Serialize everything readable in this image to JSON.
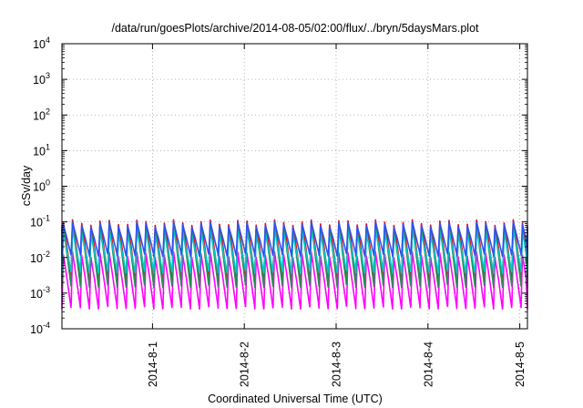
{
  "chart_data": {
    "type": "line",
    "title": "/data/run/goesPlots/archive/2014-08-05/02:00/flux/../bryn/5daysMars.plot",
    "xlabel": "Coordinated Universal Time (UTC)",
    "ylabel": "cSv/day",
    "y_scale": "log",
    "ylim": [
      0.0001,
      10000
    ],
    "y_ticks": [
      {
        "base": "10",
        "exp": "-4",
        "value": 0.0001
      },
      {
        "base": "10",
        "exp": "-3",
        "value": 0.001
      },
      {
        "base": "10",
        "exp": "-2",
        "value": 0.01
      },
      {
        "base": "10",
        "exp": "-1",
        "value": 0.1
      },
      {
        "base": "10",
        "exp": "0",
        "value": 1
      },
      {
        "base": "10",
        "exp": "1",
        "value": 10
      },
      {
        "base": "10",
        "exp": "2",
        "value": 100
      },
      {
        "base": "10",
        "exp": "3",
        "value": 1000
      },
      {
        "base": "10",
        "exp": "4",
        "value": 10000
      }
    ],
    "xlim": [
      "2014-07-31T00:20",
      "2014-08-05T02:00"
    ],
    "x_ticks": [
      {
        "label": "2014-8-1",
        "value": "2014-08-01"
      },
      {
        "label": "2014-8-2",
        "value": "2014-08-02"
      },
      {
        "label": "2014-8-3",
        "value": "2014-08-03"
      },
      {
        "label": "2014-8-4",
        "value": "2014-08-04"
      },
      {
        "label": "2014-8-5",
        "value": "2014-08-05"
      }
    ],
    "grid": true,
    "sawtooth_period_hours": 2.4,
    "series": [
      {
        "color": "#ff00ff",
        "peak": 0.012,
        "trough": 0.0004
      },
      {
        "color": "#ff0000",
        "peak": 0.095,
        "trough": 0.003
      },
      {
        "color": "#2e8b57",
        "peak": 0.07,
        "trough": 0.0016
      },
      {
        "color": "#00c8c8",
        "peak": 0.05,
        "trough": 0.004
      },
      {
        "color": "#3050f0",
        "peak": 0.085,
        "trough": 0.012
      }
    ]
  }
}
